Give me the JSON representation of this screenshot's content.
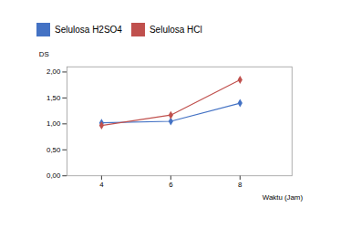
{
  "chart_data": {
    "type": "line",
    "ylabel": "DS",
    "xlabel": "Waktu (Jam)",
    "x": [
      4,
      6,
      8
    ],
    "series": [
      {
        "name": "Selulosa H2SO4",
        "color": "#4472c4",
        "values": [
          1.02,
          1.05,
          1.4
        ]
      },
      {
        "name": "Selulosa HCl",
        "color": "#c0504d",
        "values": [
          0.97,
          1.17,
          1.85
        ]
      }
    ],
    "xlim": [
      3.0,
      9.5
    ],
    "xticks": [
      4,
      6,
      8
    ],
    "ylim": [
      0.0,
      2.1
    ],
    "yticks": [
      {
        "value": 0.0,
        "label": "0,00"
      },
      {
        "value": 0.5,
        "label": "0,50"
      },
      {
        "value": 1.0,
        "label": "1,00"
      },
      {
        "value": 1.5,
        "label": "1,50"
      },
      {
        "value": 2.0,
        "label": "2,00"
      }
    ],
    "marker": "diamond",
    "legend": "top",
    "grid": false
  }
}
